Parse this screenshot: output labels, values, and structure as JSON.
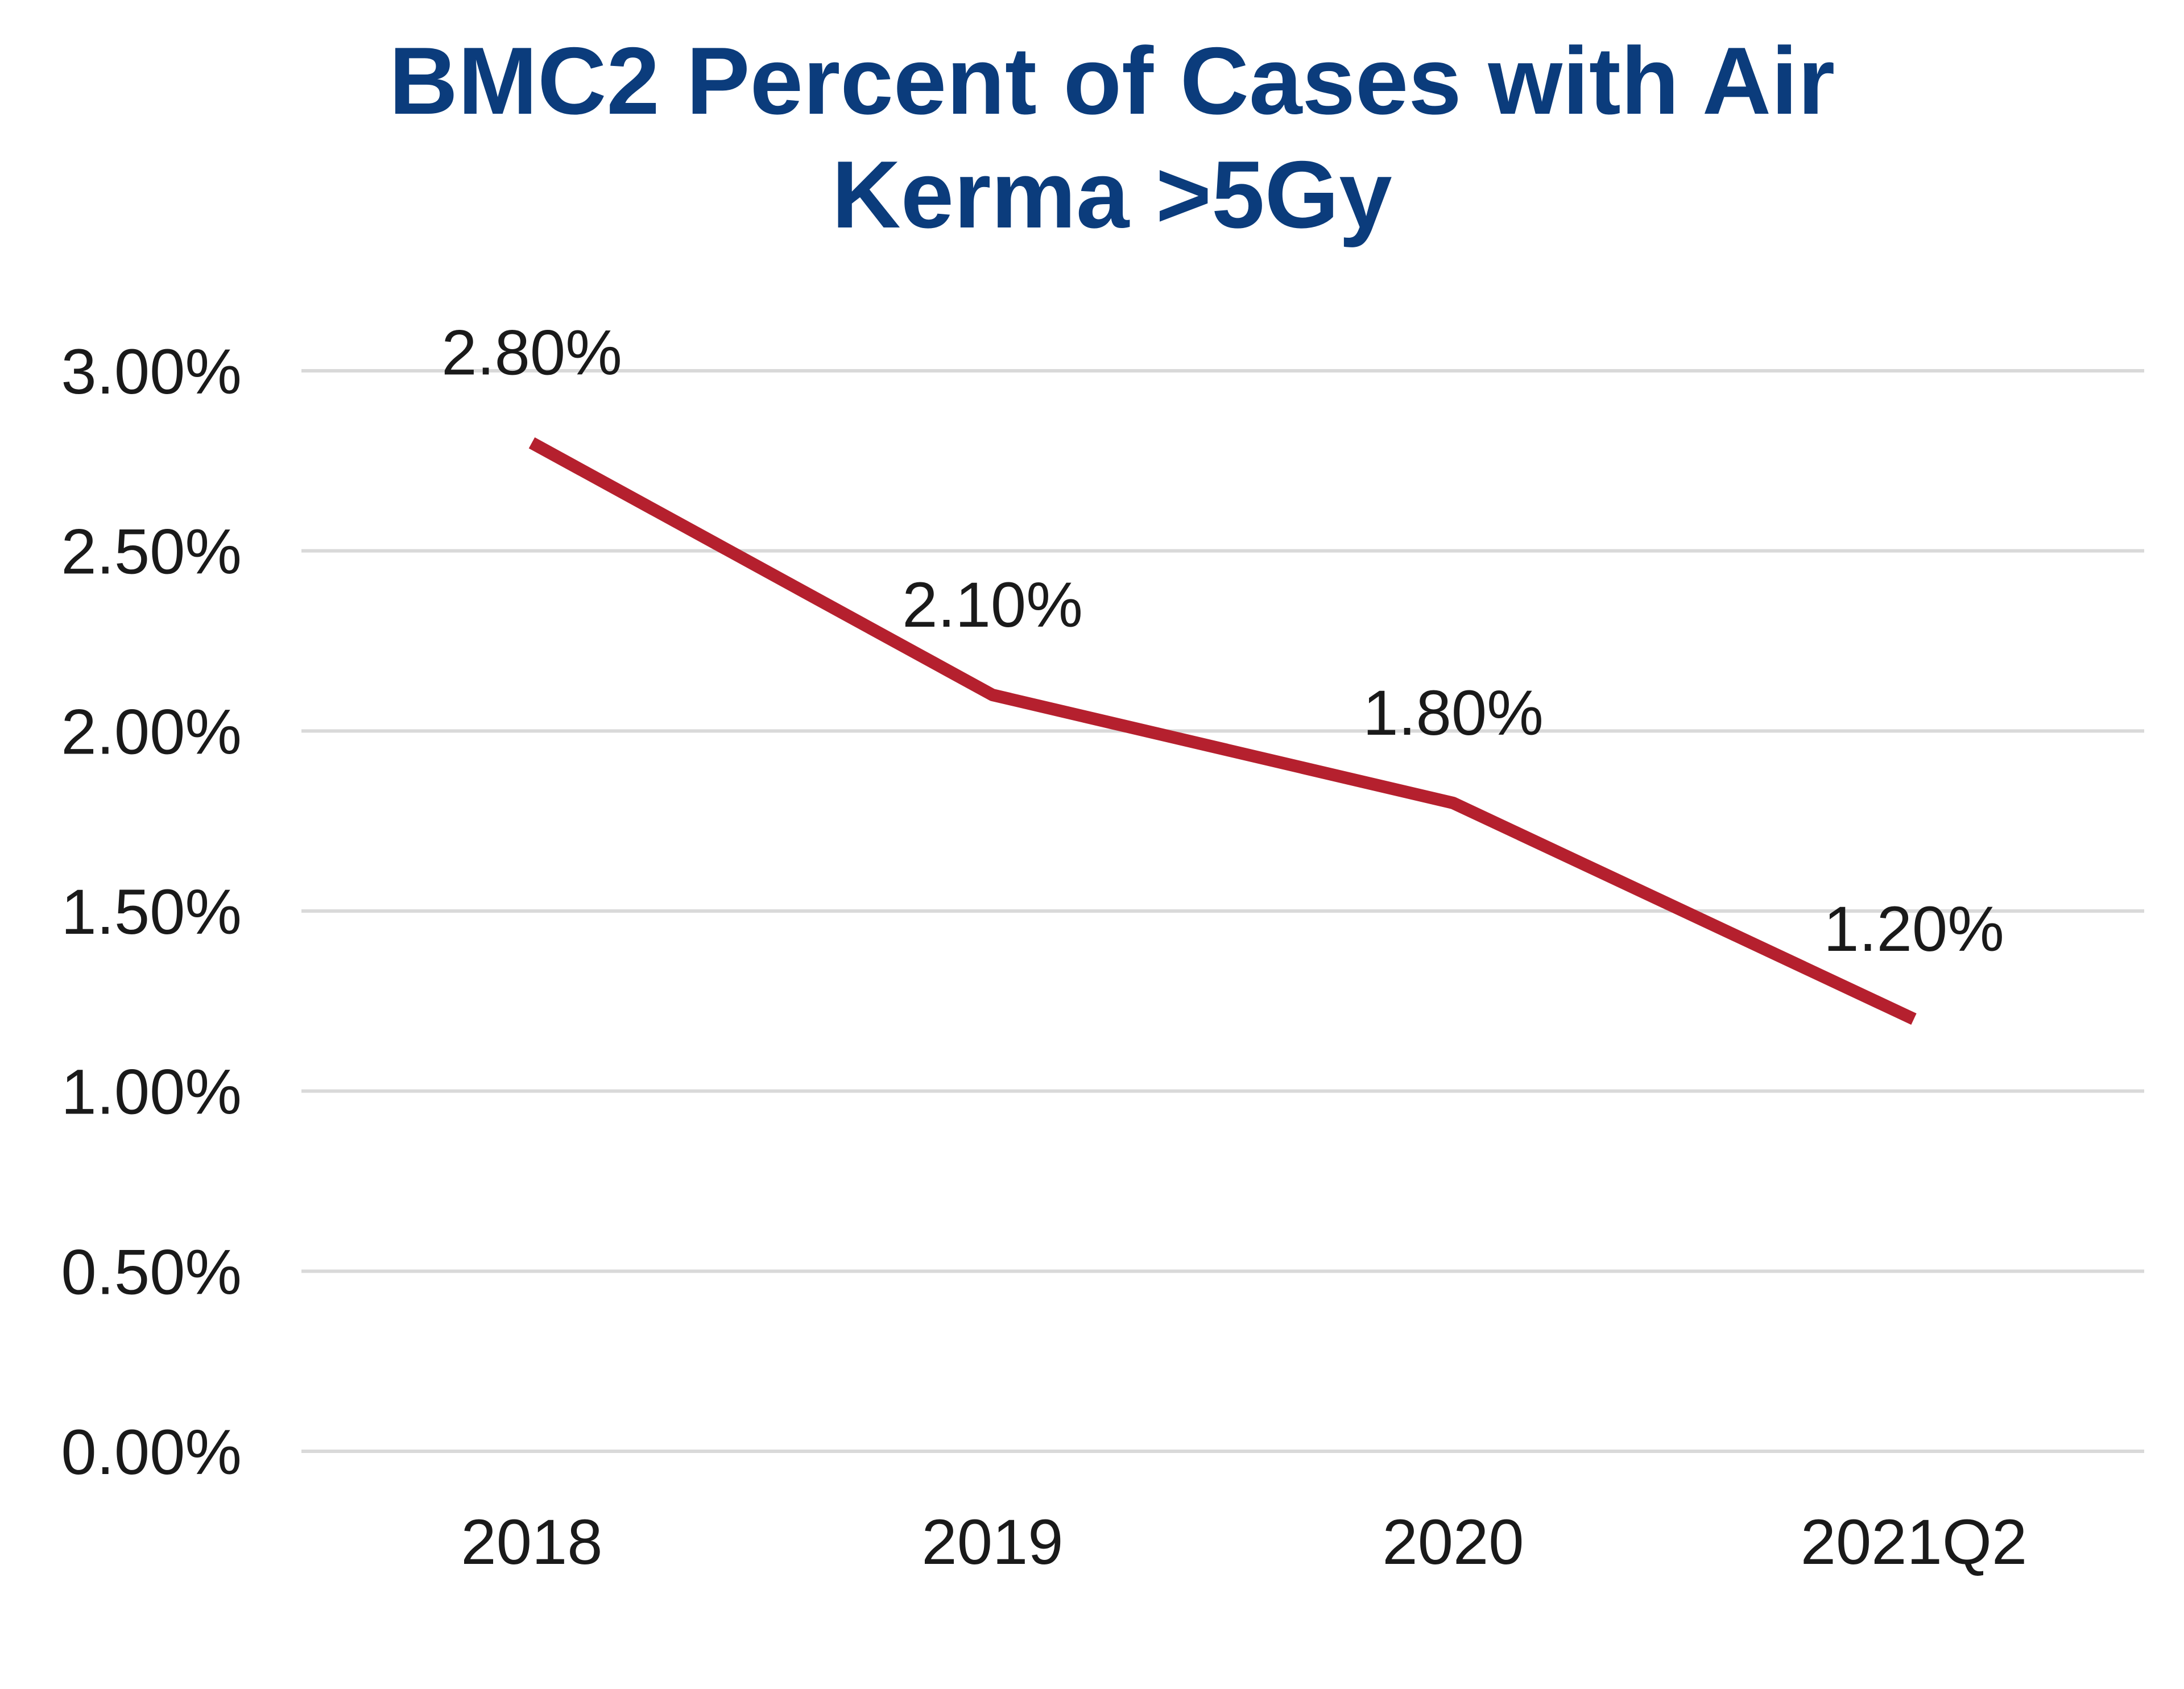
{
  "chart_data": {
    "type": "line",
    "title_lines": [
      "BMC2 Percent of Cases with Air",
      "Kerma >5Gy"
    ],
    "categories": [
      "2018",
      "2019",
      "2020",
      "2021Q2"
    ],
    "series": [
      {
        "values": [
          0.028,
          0.021,
          0.018,
          0.012
        ],
        "data_labels": [
          "2.80%",
          "2.10%",
          "1.80%",
          "1.20%"
        ]
      }
    ],
    "ylim": [
      0,
      0.03
    ],
    "yticks": [
      0,
      0.005,
      0.01,
      0.015,
      0.02,
      0.025,
      0.03
    ],
    "ytick_labels": [
      "0.00%",
      "0.50%",
      "1.00%",
      "1.50%",
      "2.00%",
      "2.50%",
      "3.00%"
    ],
    "grid": true,
    "legend": "none",
    "colors": {
      "title": "#0B3C7C",
      "line": "#B5202E",
      "grid": "#D9D9D9",
      "text": "#1A1A1A"
    }
  }
}
